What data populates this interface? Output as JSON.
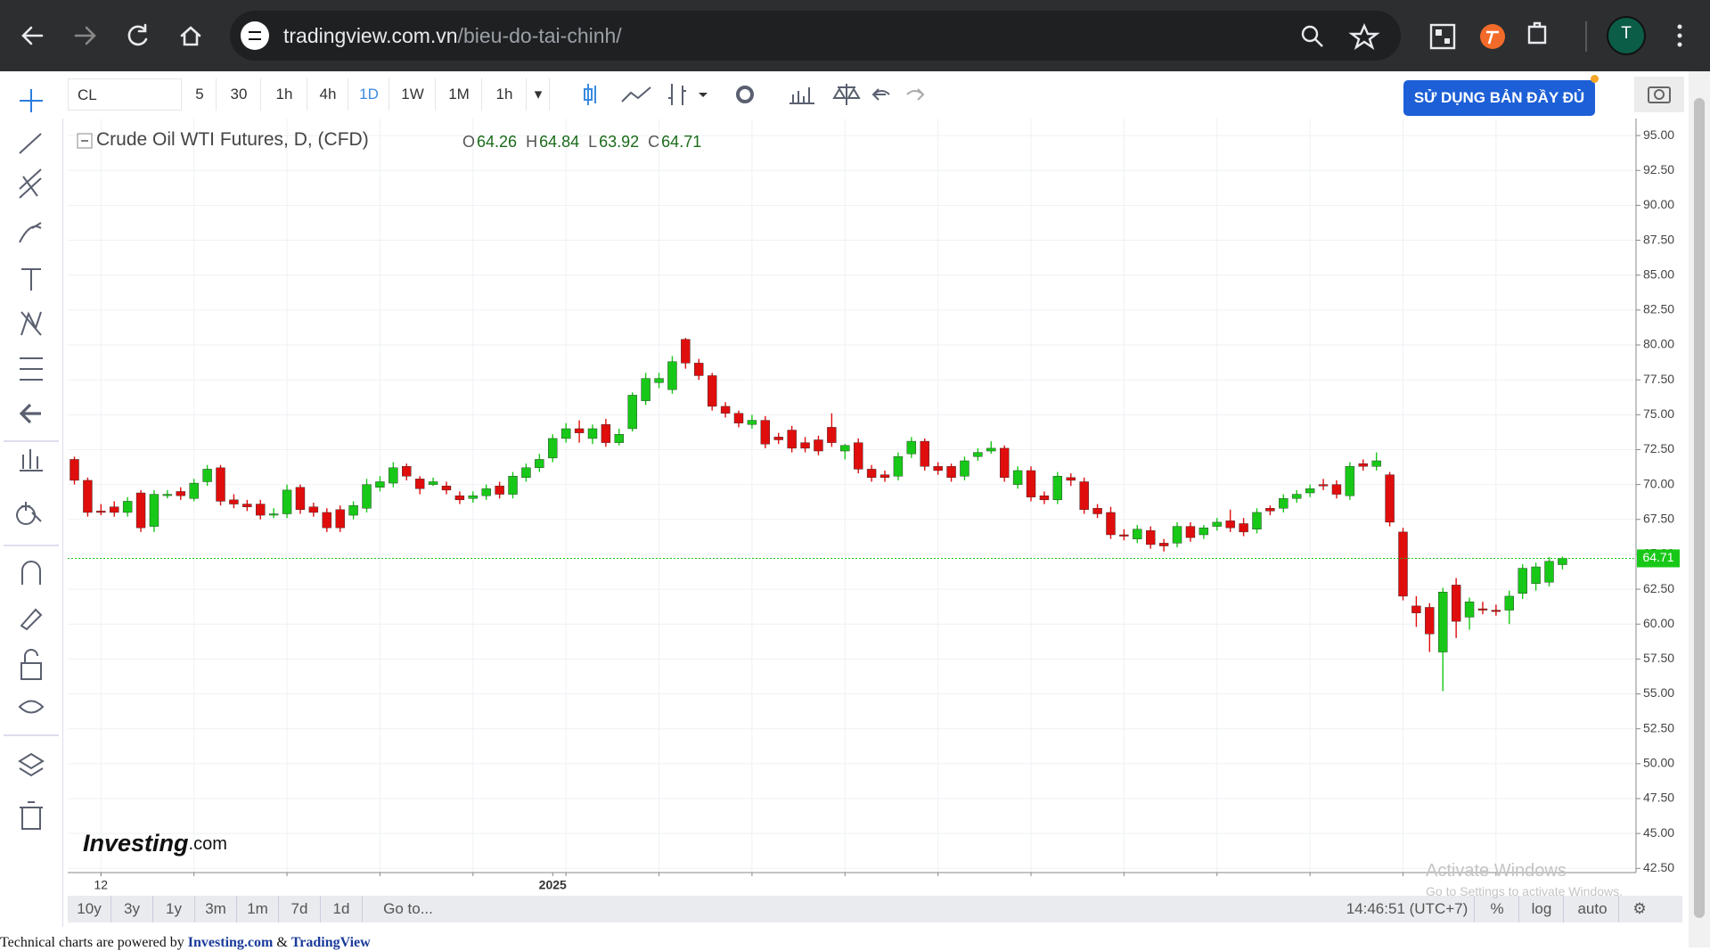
{
  "browser": {
    "url_host": "tradingview.com.vn",
    "url_path": "/bieu-do-tai-chinh/",
    "avatar": "T"
  },
  "toolbar": {
    "symbol": "CL",
    "intervals": [
      "5",
      "30",
      "1h",
      "4h",
      "1D",
      "1W",
      "1M",
      "1h"
    ],
    "active_interval_index": 4,
    "cta": "SỬ DỤNG BẢN ĐẦY ĐỦ"
  },
  "chart_data": {
    "type": "candlestick",
    "title": "Crude Oil WTI Futures, D, (CFD)",
    "ohlc_labels": [
      "O",
      "H",
      "L",
      "C"
    ],
    "categories": [
      null,
      null,
      "12",
      null,
      null,
      null,
      null,
      null,
      null,
      null,
      null,
      null,
      null,
      null,
      null,
      null,
      null,
      null,
      null,
      null,
      null,
      null,
      null,
      null,
      null,
      null,
      null,
      null,
      null,
      null,
      null,
      null,
      null,
      null,
      null,
      null,
      "2025",
      null,
      null,
      null,
      null,
      null,
      null,
      null,
      null,
      null,
      null,
      null,
      null,
      null,
      null,
      null,
      null,
      null,
      null,
      null,
      null,
      null,
      null,
      null,
      null,
      null,
      null,
      null,
      null,
      null,
      null,
      null,
      null,
      null,
      null,
      null,
      null,
      null,
      null,
      null,
      null,
      null,
      null,
      null,
      null,
      null,
      null,
      null,
      null,
      null,
      null,
      null,
      null,
      null,
      null,
      null,
      null,
      null,
      null,
      null,
      null,
      null,
      null,
      null,
      null,
      null,
      null,
      null,
      null,
      null,
      null,
      null,
      null,
      null,
      null,
      null,
      null
    ],
    "open": [
      71.8,
      70.3,
      68.1,
      68.4,
      68.0,
      69.4,
      67.0,
      69.3,
      69.5,
      69.0,
      70.2,
      71.2,
      68.9,
      68.6,
      68.6,
      67.9,
      67.9,
      69.8,
      68.4,
      68.0,
      68.2,
      67.8,
      68.3,
      69.8,
      70.1,
      71.3,
      70.4,
      70.0,
      69.9,
      69.2,
      69.0,
      69.2,
      69.9,
      69.3,
      70.5,
      71.2,
      71.9,
      73.3,
      74.0,
      73.3,
      74.3,
      73.0,
      74.0,
      76.0,
      77.3,
      76.8,
      80.4,
      78.7,
      77.8,
      75.6,
      75.1,
      74.3,
      74.6,
      73.4,
      73.9,
      73.0,
      73.2,
      74.1,
      72.4,
      73.0,
      71.1,
      70.7,
      70.6,
      72.2,
      73.1,
      71.3,
      71.3,
      70.6,
      72.0,
      72.4,
      72.6,
      70.0,
      71.0,
      69.2,
      68.9,
      70.5,
      70.2,
      68.3,
      68.0,
      66.4,
      66.1,
      66.7,
      65.8,
      65.8,
      67.0,
      66.4,
      67.0,
      67.4,
      67.2,
      66.8,
      68.3,
      68.3,
      69.0,
      69.4,
      70.0,
      70.0,
      69.2,
      71.5,
      71.3,
      70.7,
      66.6,
      61.3,
      61.2,
      58.0,
      62.8,
      60.5,
      61.1,
      61.0,
      61.0,
      62.2,
      62.9,
      63.0,
      64.26
    ],
    "high": [
      72.0,
      70.5,
      68.6,
      68.8,
      69.1,
      69.6,
      69.6,
      69.6,
      69.8,
      70.4,
      71.4,
      71.4,
      69.3,
      68.9,
      68.9,
      68.3,
      70.0,
      70.0,
      68.7,
      68.3,
      68.5,
      68.8,
      70.4,
      70.6,
      71.6,
      71.5,
      70.6,
      70.5,
      70.2,
      69.5,
      69.5,
      70.0,
      70.2,
      70.9,
      71.5,
      72.2,
      73.6,
      74.4,
      74.6,
      74.3,
      74.7,
      74.0,
      76.6,
      78.0,
      78.0,
      79.2,
      80.5,
      79.0,
      78.0,
      75.9,
      75.3,
      75.0,
      74.9,
      73.7,
      74.2,
      73.4,
      73.5,
      75.1,
      72.9,
      73.3,
      71.4,
      71.0,
      72.3,
      73.4,
      73.3,
      71.6,
      71.5,
      72.0,
      72.6,
      73.1,
      72.8,
      71.3,
      71.3,
      69.5,
      70.9,
      70.8,
      70.5,
      68.6,
      68.4,
      66.8,
      67.1,
      67.0,
      66.1,
      67.3,
      67.3,
      67.1,
      67.6,
      68.2,
      67.6,
      68.3,
      68.5,
      69.3,
      69.6,
      70.0,
      70.4,
      70.3,
      71.6,
      71.8,
      72.3,
      70.9,
      66.9,
      62.0,
      61.5,
      62.6,
      63.3,
      61.9,
      61.6,
      61.4,
      62.4,
      64.3,
      64.4,
      64.8,
      64.84
    ],
    "low": [
      70.0,
      67.7,
      67.8,
      67.7,
      67.7,
      66.6,
      66.6,
      69.0,
      68.9,
      68.8,
      69.9,
      68.5,
      68.3,
      68.1,
      67.5,
      67.6,
      67.6,
      67.9,
      67.7,
      66.6,
      66.6,
      67.5,
      68.0,
      69.5,
      69.8,
      70.3,
      69.3,
      69.9,
      69.3,
      68.6,
      68.7,
      68.9,
      69.0,
      69.0,
      70.2,
      70.9,
      71.6,
      73.0,
      73.0,
      72.9,
      72.7,
      72.8,
      73.8,
      75.7,
      76.9,
      76.5,
      78.3,
      77.5,
      75.3,
      74.8,
      74.1,
      74.0,
      72.6,
      72.9,
      72.3,
      72.3,
      72.1,
      72.7,
      71.8,
      70.8,
      70.2,
      70.2,
      70.3,
      71.9,
      71.0,
      70.7,
      70.2,
      70.3,
      71.7,
      72.2,
      70.2,
      69.7,
      68.8,
      68.6,
      68.6,
      69.9,
      67.9,
      67.6,
      66.1,
      66.0,
      65.8,
      65.4,
      65.2,
      65.5,
      65.9,
      66.1,
      66.7,
      66.6,
      66.3,
      66.5,
      67.8,
      68.0,
      68.7,
      69.1,
      69.6,
      69.0,
      68.9,
      71.0,
      71.0,
      67.0,
      61.7,
      59.8,
      58.0,
      55.2,
      59.0,
      59.6,
      60.7,
      60.6,
      60.0,
      61.8,
      62.4,
      62.7,
      63.92
    ],
    "close": [
      70.3,
      68.0,
      68.0,
      68.0,
      68.8,
      66.9,
      69.3,
      69.3,
      69.2,
      70.1,
      71.1,
      68.8,
      68.6,
      68.4,
      67.8,
      67.9,
      69.6,
      68.2,
      68.0,
      66.9,
      66.9,
      68.5,
      70.0,
      70.2,
      71.2,
      70.6,
      69.7,
      70.2,
      69.6,
      68.9,
      69.2,
      69.7,
      69.3,
      70.6,
      71.2,
      71.8,
      73.3,
      74.0,
      73.7,
      74.0,
      73.0,
      73.6,
      76.4,
      77.6,
      77.6,
      78.8,
      78.7,
      77.8,
      75.6,
      75.1,
      74.4,
      74.6,
      72.9,
      73.2,
      72.6,
      72.6,
      72.4,
      73.0,
      72.8,
      71.1,
      70.5,
      70.5,
      72.0,
      73.1,
      71.3,
      71.0,
      70.5,
      71.7,
      72.3,
      72.6,
      70.5,
      71.0,
      69.1,
      68.9,
      70.6,
      70.3,
      68.2,
      67.9,
      66.4,
      66.3,
      66.8,
      65.7,
      65.6,
      67.0,
      66.2,
      66.9,
      67.3,
      66.9,
      66.6,
      68.0,
      68.1,
      69.0,
      69.3,
      69.7,
      69.9,
      69.3,
      71.3,
      71.3,
      71.7,
      67.3,
      62.0,
      60.8,
      59.3,
      62.3,
      60.2,
      61.6,
      61.0,
      60.9,
      62.0,
      64.0,
      64.1,
      64.5,
      64.71
    ],
    "up_color": "#18c818",
    "down_color": "#e00d0d",
    "last_price_color": "#18c818",
    "ylim": [
      42.2,
      95.9
    ],
    "yticks": [
      {
        "value": 42.5,
        "label": "42.50"
      },
      {
        "value": 45,
        "label": "45.00"
      },
      {
        "value": 47.5,
        "label": "47.50"
      },
      {
        "value": 50,
        "label": "50.00"
      },
      {
        "value": 52.5,
        "label": "52.50"
      },
      {
        "value": 55,
        "label": "55.00"
      },
      {
        "value": 57.5,
        "label": "57.50"
      },
      {
        "value": 60,
        "label": "60.00"
      },
      {
        "value": 62.5,
        "label": "62.50"
      },
      {
        "value": 65,
        "label": "65.00"
      },
      {
        "value": 67.5,
        "label": "67.50"
      },
      {
        "value": 70,
        "label": "70.00"
      },
      {
        "value": 72.5,
        "label": "72.50"
      },
      {
        "value": 75,
        "label": "75.00"
      },
      {
        "value": 77.5,
        "label": "77.50"
      },
      {
        "value": 80,
        "label": "80.00"
      },
      {
        "value": 82.5,
        "label": "82.50"
      },
      {
        "value": 85,
        "label": "85.00"
      },
      {
        "value": 87.5,
        "label": "87.50"
      },
      {
        "value": 90,
        "label": "90.00"
      },
      {
        "value": 92.5,
        "label": "92.50"
      },
      {
        "value": 95,
        "label": "95.00"
      }
    ],
    "grid": true,
    "log_scale": false
  },
  "watermark": {
    "brand": "Investing",
    "suffix": ".com"
  },
  "bottom_bar": {
    "ranges": [
      "10y",
      "3y",
      "1y",
      "3m",
      "1m",
      "7d",
      "1d"
    ],
    "goto": "Go to...",
    "time": "14:46:51 (UTC+7)",
    "scale_options": [
      "%",
      "log",
      "auto"
    ]
  },
  "os_overlay": {
    "title": "Activate Windows",
    "subtitle": "Go to Settings to activate Windows."
  },
  "footer": {
    "prefix": "Technical charts are powered by ",
    "link1": "Investing.com",
    "separator": " & ",
    "link2": "TradingView"
  }
}
